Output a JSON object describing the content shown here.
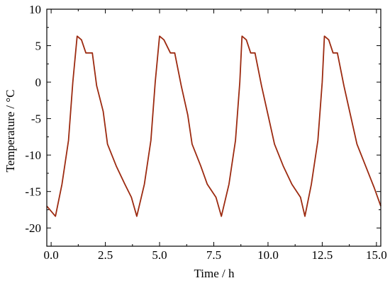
{
  "chart_data": {
    "type": "line",
    "title": "",
    "xlabel": "Time / h",
    "ylabel": "Temperature / °C",
    "xlim": [
      -0.2,
      15.2
    ],
    "ylim": [
      -22.5,
      10
    ],
    "x_ticks": [
      0,
      2.5,
      5,
      7.5,
      10,
      12.5,
      15
    ],
    "x_tick_labels": [
      "0.0",
      "2.5",
      "5.0",
      "7.5",
      "10.0",
      "12.5",
      "15.0"
    ],
    "y_ticks": [
      -20,
      -15,
      -10,
      -5,
      0,
      5,
      10
    ],
    "y_tick_labels": [
      "-20",
      "-15",
      "-10",
      "-5",
      "0",
      "5",
      "10"
    ],
    "grid": false,
    "legend": "none",
    "line_color": "#9c2a10",
    "series": [
      {
        "x": [
          -0.2,
          0.2,
          0.5,
          0.8,
          1.0,
          1.2,
          1.4,
          1.6,
          1.9,
          2.1,
          2.4,
          2.6,
          3.0,
          3.4,
          3.7,
          3.95,
          4.3,
          4.6,
          4.8,
          5.0,
          5.2,
          5.5,
          5.7,
          6.0,
          6.3,
          6.5,
          6.9,
          7.2,
          7.6,
          7.85,
          8.2,
          8.5,
          8.7,
          8.8,
          9.0,
          9.2,
          9.4,
          9.7,
          10.0,
          10.3,
          10.7,
          11.1,
          11.5,
          11.7,
          12.0,
          12.3,
          12.5,
          12.6,
          12.8,
          13.0,
          13.2,
          13.5,
          13.8,
          14.1,
          14.5,
          14.9,
          15.2
        ],
        "y": [
          -17,
          -18.4,
          -14,
          -8,
          0,
          6.3,
          5.8,
          4,
          4,
          -0.5,
          -4,
          -8.5,
          -11.5,
          -14,
          -15.8,
          -18.4,
          -14,
          -8,
          0,
          6.3,
          5.8,
          4,
          4,
          -0.5,
          -4.5,
          -8.5,
          -11.5,
          -14,
          -15.8,
          -18.4,
          -14,
          -8,
          0,
          6.3,
          5.8,
          4,
          4,
          -0.5,
          -4.5,
          -8.5,
          -11.5,
          -14,
          -15.8,
          -18.4,
          -14,
          -8,
          0,
          6.3,
          5.8,
          4,
          4,
          -0.5,
          -4.5,
          -8.5,
          -11.5,
          -14.5,
          -17
        ]
      }
    ]
  }
}
